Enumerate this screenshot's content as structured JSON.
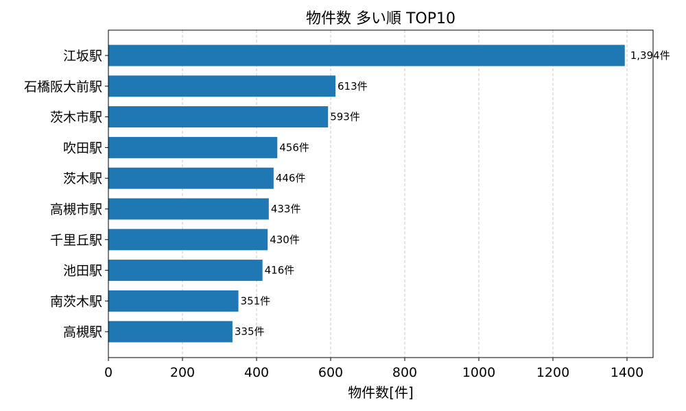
{
  "chart_data": {
    "type": "bar",
    "orientation": "horizontal",
    "title": "物件数 多い順 TOP10",
    "xlabel": "物件数[件]",
    "ylabel": "",
    "xlim": [
      0,
      1460
    ],
    "xticks": [
      0,
      200,
      400,
      600,
      800,
      1000,
      1200,
      1400
    ],
    "grid": "x-dashed",
    "bar_color": "#1f77b4",
    "categories": [
      "江坂駅",
      "石橋阪大前駅",
      "茨木市駅",
      "吹田駅",
      "茨木駅",
      "高槻市駅",
      "千里丘駅",
      "池田駅",
      "南茨木駅",
      "高槻駅"
    ],
    "values": [
      1394,
      613,
      593,
      456,
      446,
      433,
      430,
      416,
      351,
      335
    ],
    "data_labels": [
      "1,394件",
      "613件",
      "593件",
      "456件",
      "446件",
      "433件",
      "430件",
      "416件",
      "351件",
      "335件"
    ]
  }
}
